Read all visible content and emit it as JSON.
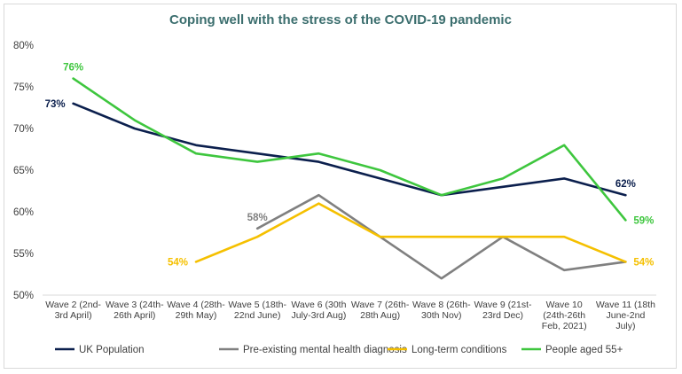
{
  "chart_data": {
    "type": "line",
    "title": "Coping well with the stress of the COVID-19 pandemic",
    "xlabel": "",
    "ylabel": "",
    "ylim": [
      50,
      80
    ],
    "yticks": [
      "80%",
      "75%",
      "70%",
      "65%",
      "60%",
      "55%",
      "50%"
    ],
    "ytick_values": [
      80,
      75,
      70,
      65,
      60,
      55,
      50
    ],
    "grid": false,
    "legend_position": "bottom",
    "categories": [
      [
        "Wave 2 (2nd-",
        "3rd April)"
      ],
      [
        "Wave 3 (24th-",
        "26th April)"
      ],
      [
        "Wave 4 (28th-",
        "29th May)"
      ],
      [
        "Wave 5 (18th-",
        "22nd June)"
      ],
      [
        "Wave 6 (30th",
        "July-3rd Aug)"
      ],
      [
        "Wave 7 (26th-",
        "28th Aug)"
      ],
      [
        "Wave 8 (26th-",
        "30th Nov)"
      ],
      [
        "Wave 9 (21st-",
        "23rd Dec)"
      ],
      [
        "Wave 10",
        "(24th-26th",
        "Feb, 2021)"
      ],
      [
        "Wave 11 (18th",
        "June-2nd",
        "July)"
      ]
    ],
    "series": [
      {
        "name": "UK Population",
        "color": "#0b1f4d",
        "values": [
          73,
          70,
          68,
          67,
          66,
          64,
          62,
          63,
          64,
          62
        ],
        "labels": [
          {
            "index": 0,
            "text": "73%",
            "anchor": "left"
          },
          {
            "index": 9,
            "text": "62%",
            "anchor": "above"
          }
        ]
      },
      {
        "name": "Pre-existing mental health diagnosis",
        "color": "#808080",
        "values": [
          null,
          null,
          null,
          58,
          62,
          57,
          52,
          57,
          53,
          54
        ],
        "labels": [
          {
            "index": 3,
            "text": "58%",
            "anchor": "above"
          }
        ]
      },
      {
        "name": "Long-term conditions",
        "color": "#f5c000",
        "values": [
          null,
          null,
          54,
          57,
          61,
          57,
          57,
          57,
          57,
          54
        ],
        "labels": [
          {
            "index": 2,
            "text": "54%",
            "anchor": "left"
          },
          {
            "index": 9,
            "text": "54%",
            "anchor": "right"
          }
        ]
      },
      {
        "name": "People aged 55+",
        "color": "#3ec63e",
        "values": [
          76,
          71,
          67,
          66,
          67,
          65,
          62,
          64,
          68,
          59
        ],
        "labels": [
          {
            "index": 0,
            "text": "76%",
            "anchor": "above"
          },
          {
            "index": 9,
            "text": "59%",
            "anchor": "right"
          }
        ]
      }
    ]
  }
}
